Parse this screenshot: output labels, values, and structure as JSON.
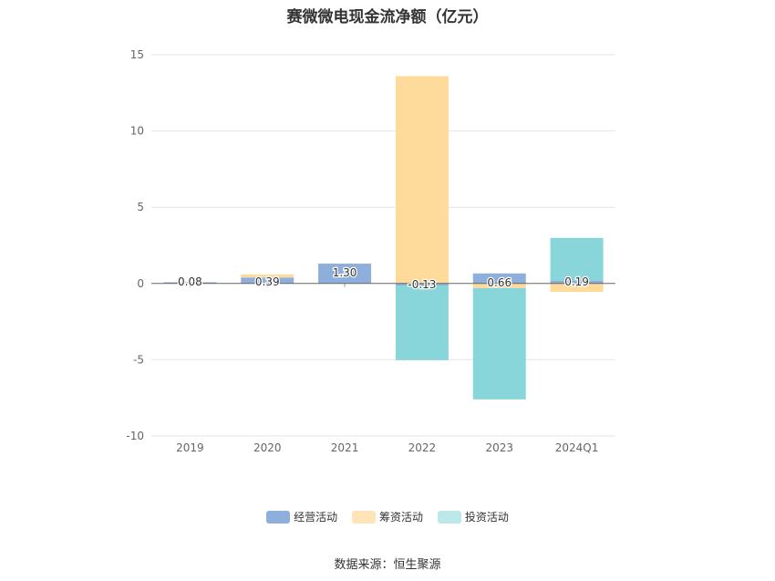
{
  "chart_data": {
    "type": "bar",
    "stacked": true,
    "title": "赛微微电现金流净额（亿元）",
    "categories": [
      "2019",
      "2020",
      "2021",
      "2022",
      "2023",
      "2024Q1"
    ],
    "ylim": [
      -10,
      15
    ],
    "yticks": [
      -10,
      -5,
      0,
      5,
      10,
      15
    ],
    "grid": true,
    "legend_position": "bottom",
    "series": [
      {
        "name": "经营活动",
        "color": "#8eaedc",
        "values": [
          0.08,
          0.39,
          1.3,
          -0.13,
          0.66,
          0.19
        ]
      },
      {
        "name": "筹资活动",
        "color": "#fedb9a",
        "values": [
          0.0,
          0.2,
          0.0,
          13.6,
          -0.3,
          -0.55
        ]
      },
      {
        "name": "投资活动",
        "color": "#88d6d9",
        "values": [
          0.0,
          0.0,
          0.0,
          -4.9,
          -7.3,
          2.8
        ]
      }
    ],
    "data_labels": [
      "0.08",
      "0.39",
      "1.30",
      "-0.13",
      "0.66",
      "0.19"
    ],
    "source": "数据来源：恒生聚源"
  },
  "legend_swatch_colors": [
    "#8eaedc",
    "#fee4b6",
    "#bde8e9"
  ]
}
